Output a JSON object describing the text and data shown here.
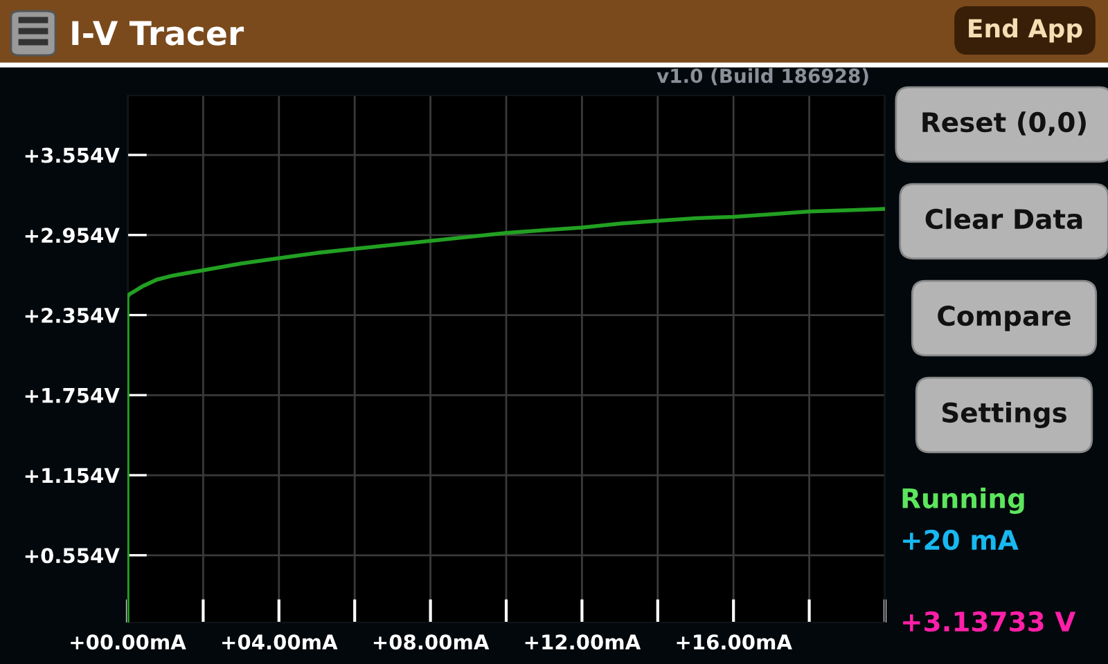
{
  "chart_data": {
    "type": "line",
    "title": "I-V Tracer",
    "x": [
      0,
      0,
      0,
      0.05,
      0.17,
      0.4,
      0.78,
      1.2,
      2,
      3,
      4,
      5,
      6,
      7,
      8,
      9,
      10,
      11,
      12,
      13,
      14,
      15,
      16,
      17,
      18,
      19,
      20
    ],
    "series": [
      {
        "color": "#22a022",
        "values": [
          0.06,
          1.5,
          2.49,
          2.51,
          2.53,
          2.57,
          2.62,
          2.65,
          2.69,
          2.74,
          2.78,
          2.82,
          2.85,
          2.88,
          2.91,
          2.94,
          2.97,
          2.99,
          3.01,
          3.04,
          3.06,
          3.08,
          3.09,
          3.11,
          3.13,
          3.14,
          3.15
        ]
      }
    ],
    "xlim": [
      0,
      20
    ],
    "ylim": [
      0.05,
      4.0
    ],
    "xticks": [
      {
        "value": 0,
        "label": "+00.00mA"
      },
      {
        "value": 2,
        "label": null
      },
      {
        "value": 4,
        "label": "+04.00mA"
      },
      {
        "value": 6,
        "label": null
      },
      {
        "value": 8,
        "label": "+08.00mA"
      },
      {
        "value": 10,
        "label": null
      },
      {
        "value": 12,
        "label": "+12.00mA"
      },
      {
        "value": 14,
        "label": null
      },
      {
        "value": 16,
        "label": "+16.00mA"
      },
      {
        "value": 18,
        "label": null
      },
      {
        "value": 20,
        "label": null
      }
    ],
    "yticks": [
      {
        "value": 0.554,
        "label": "+0.554V"
      },
      {
        "value": 1.154,
        "label": "+1.154V"
      },
      {
        "value": 1.754,
        "label": "+1.754V"
      },
      {
        "value": 2.354,
        "label": "+2.354V"
      },
      {
        "value": 2.954,
        "label": "+2.954V"
      },
      {
        "value": 3.554,
        "label": "+3.554V"
      }
    ],
    "grid": true,
    "marker": "none",
    "line_style": "solid",
    "annotations": [
      "v1.0 (Build 186928)",
      "End App",
      "Reset (0,0)",
      "Clear Data",
      "Compare",
      "Settings",
      "Running",
      "+20 mA",
      "+3.13733 V"
    ]
  }
}
